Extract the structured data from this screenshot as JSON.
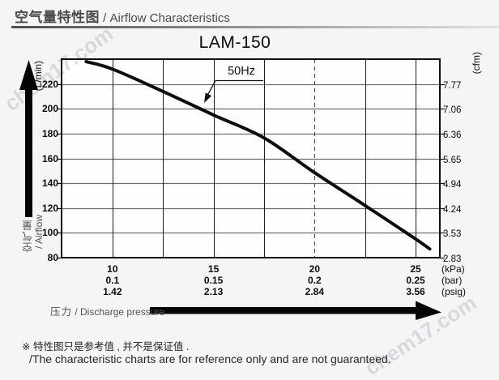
{
  "header": {
    "title_cjk": "空气量特性图",
    "title_en": " / Airflow Characteristics"
  },
  "chart_data": {
    "type": "line",
    "title": "LAM-150",
    "series": [
      {
        "name": "50Hz",
        "x_kpa": [
          8.7,
          10,
          12.5,
          15,
          17.5,
          20,
          22.5,
          25,
          25.7
        ],
        "y_lmin": [
          238,
          232,
          214,
          195,
          176.5,
          148.5,
          122,
          95,
          87
        ]
      }
    ],
    "annotation": "50Hz",
    "grid": true,
    "x_axis": {
      "name_cjk": "压力",
      "name_en": " / Discharge pressure",
      "range_kpa": [
        7.48,
        26.2
      ],
      "gridlines_kpa": [
        10,
        12.5,
        15,
        17.5,
        20,
        22.5,
        25
      ],
      "dashed_gridline_kpa": 20,
      "tick_positions_kpa": [
        10,
        15,
        20,
        25
      ],
      "tick_rows": [
        {
          "unit": "(kPa)",
          "values": [
            "10",
            "15",
            "20",
            "25"
          ]
        },
        {
          "unit": "(bar)",
          "values": [
            "0.1",
            "0.15",
            "0.2",
            "0.25"
          ]
        },
        {
          "unit": "(psig)",
          "values": [
            "1.42",
            "2.13",
            "2.84",
            "3.56"
          ]
        }
      ]
    },
    "y_axis": {
      "name_cjk": "空气量",
      "name_en": "/ Airflow",
      "unit_left": "(L/min)",
      "unit_right": "(cfm)",
      "range_lmin": [
        80,
        240
      ],
      "gridlines_lmin": [
        100,
        120,
        140,
        160,
        180,
        200,
        220
      ],
      "ticks": [
        {
          "lmin": "220",
          "cfm": "7.77"
        },
        {
          "lmin": "200",
          "cfm": "7.06"
        },
        {
          "lmin": "180",
          "cfm": "6.36"
        },
        {
          "lmin": "160",
          "cfm": "5.65"
        },
        {
          "lmin": "140",
          "cfm": "4.94"
        },
        {
          "lmin": "120",
          "cfm": "4.24"
        },
        {
          "lmin": "100",
          "cfm": "3.53"
        },
        {
          "lmin": "80",
          "cfm": "2.83"
        }
      ]
    }
  },
  "footer": {
    "note_cjk": "※ 特性图只是参考值 , 并不是保证值 .",
    "note_en": "/The characteristic charts are for reference only and are not guaranteed."
  },
  "watermark": "chem17.com",
  "colors": {
    "curve": "#0d0d0d",
    "frame": "#101010",
    "grid_h": "#6f6f6f",
    "grid_v": "#1d1d1d",
    "dashed": "#444444",
    "plot_bg": "#fefefe",
    "page_bg": "#f5f5f6",
    "header_text": "#4a4a4a",
    "axis_name_text": "#555555",
    "watermark": "#b9bdc4"
  }
}
